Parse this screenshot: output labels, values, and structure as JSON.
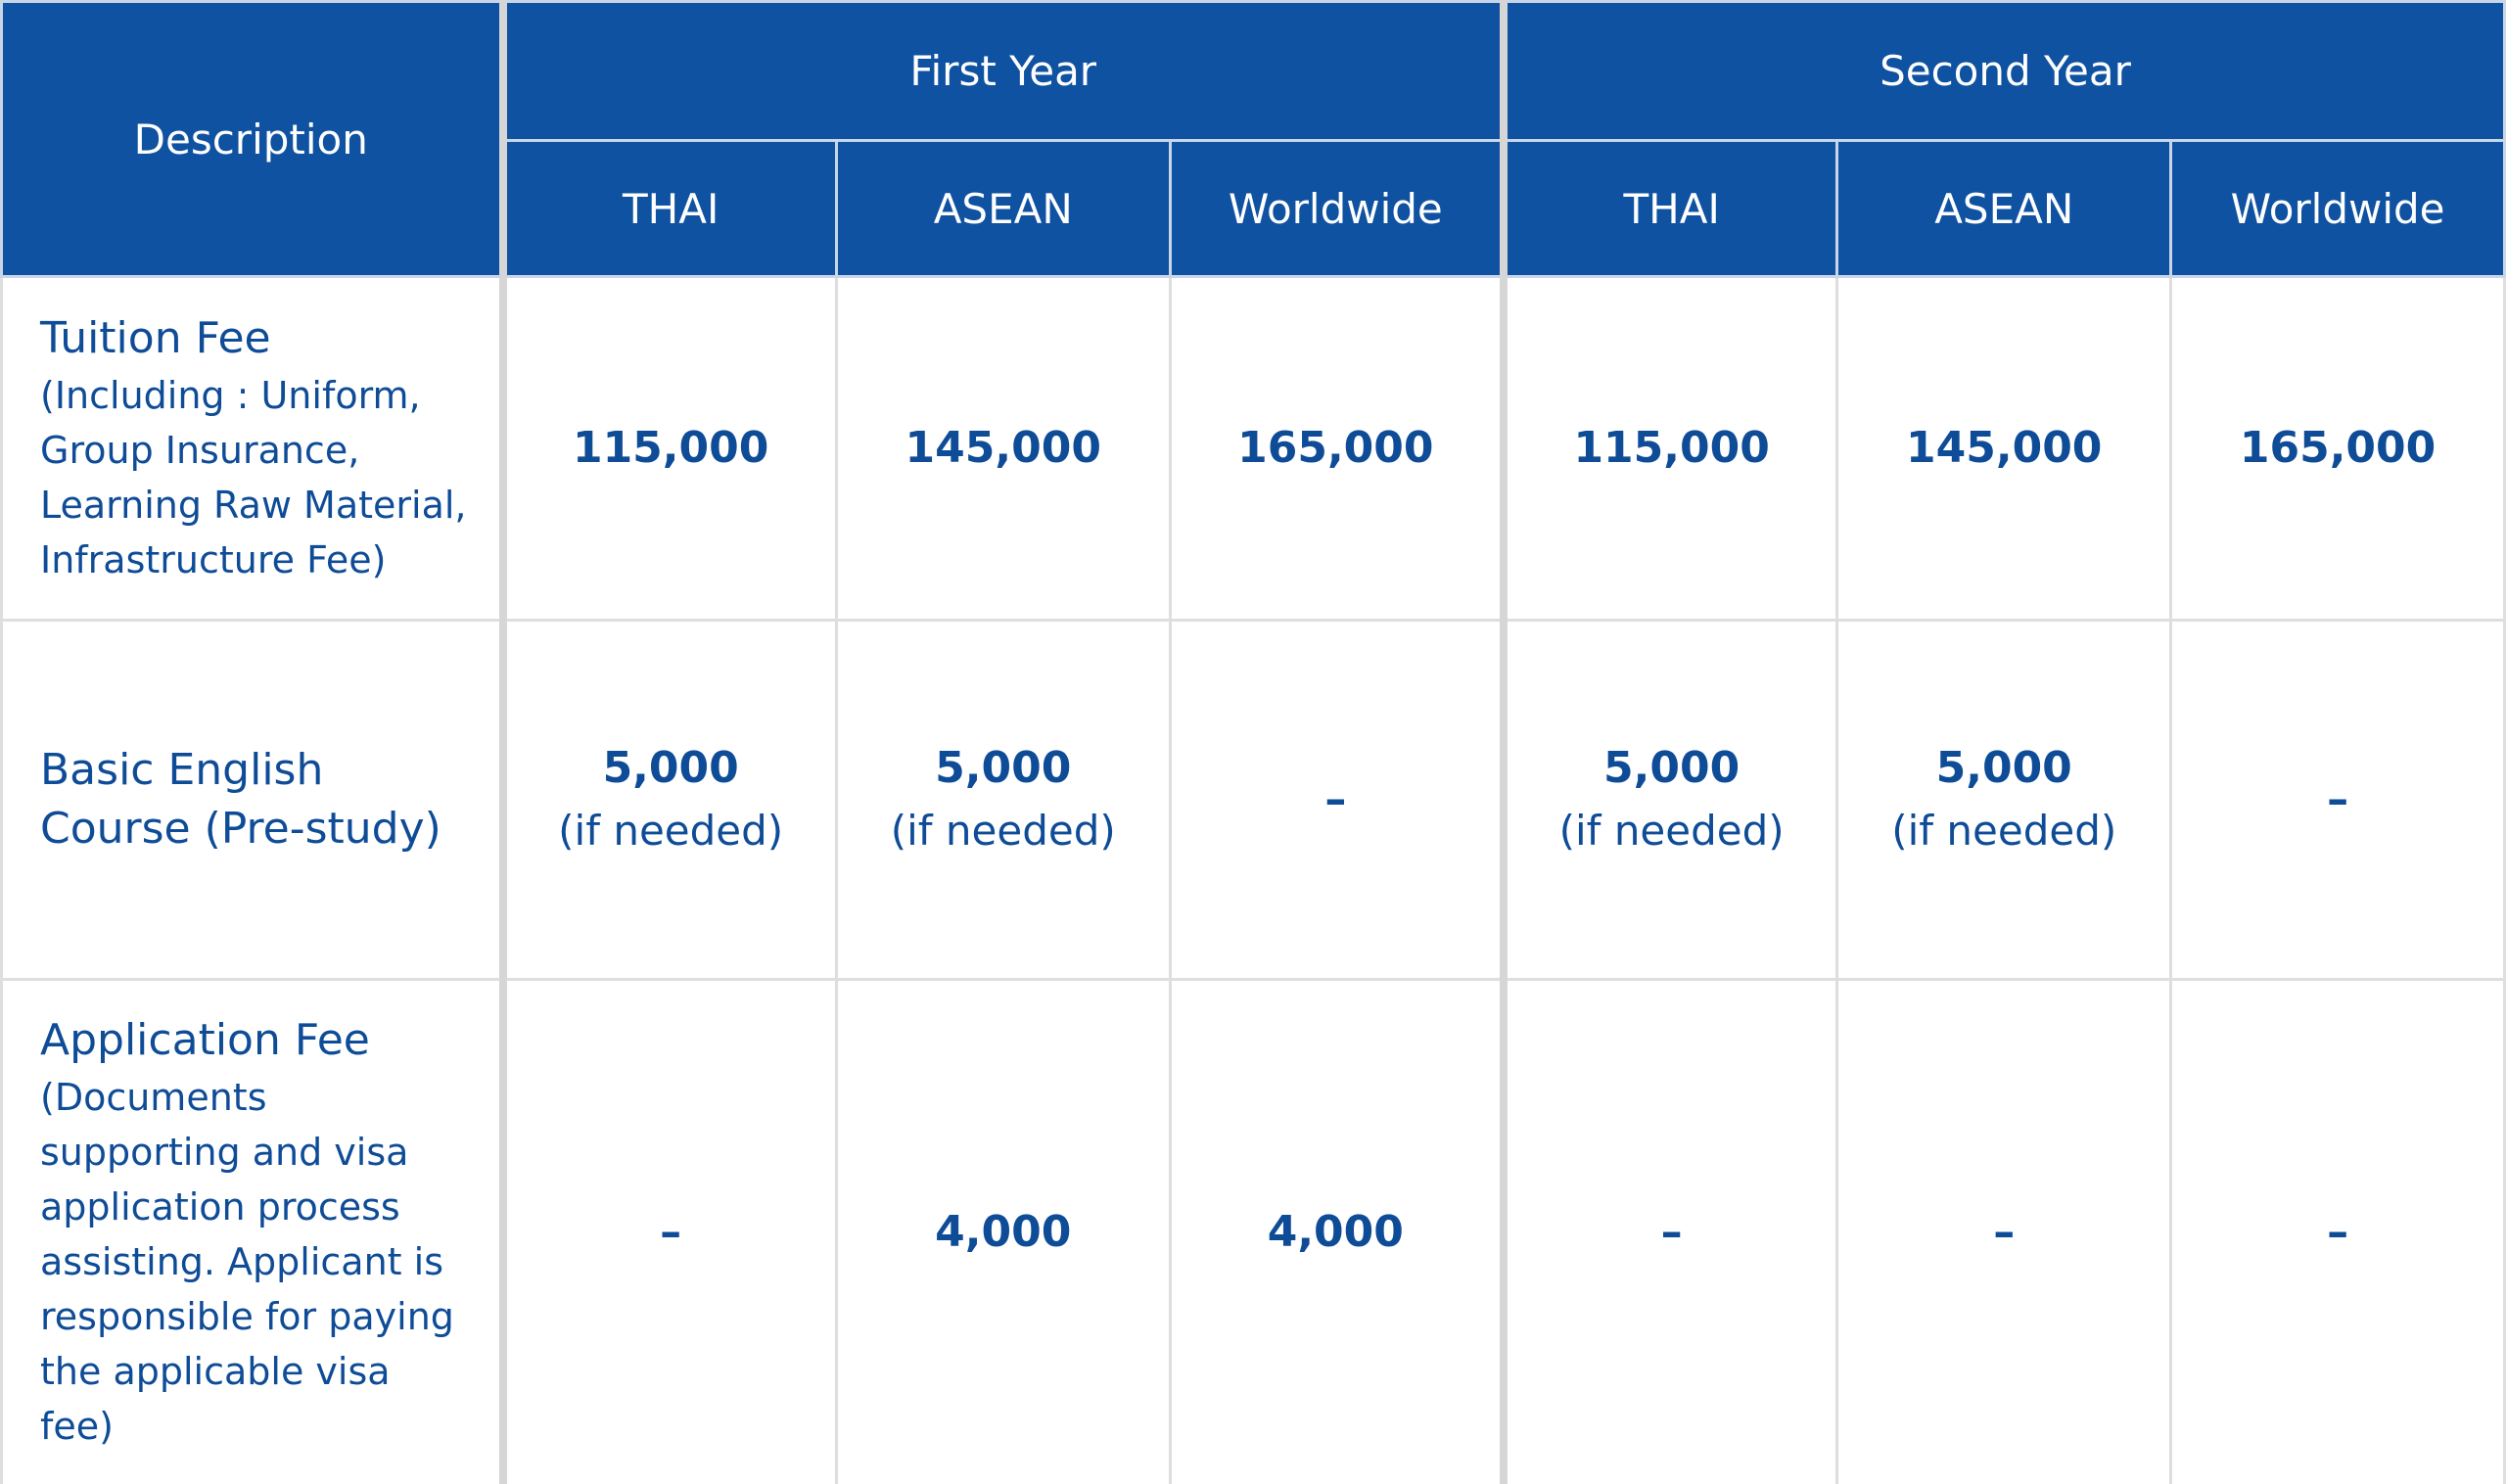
{
  "table": {
    "header": {
      "description": "Description",
      "years": [
        {
          "label": "First Year",
          "regions": [
            "THAI",
            "ASEAN",
            "Worldwide"
          ]
        },
        {
          "label": "Second Year",
          "regions": [
            "THAI",
            "ASEAN",
            "Worldwide"
          ]
        }
      ]
    },
    "rows": [
      {
        "title": "Tuition Fee",
        "note": "(Including : Uniform, Group Insurance, Learning Raw Material, Infrastructure Fee)",
        "cells": [
          {
            "value": "115,000"
          },
          {
            "value": "145,000"
          },
          {
            "value": "165,000"
          },
          {
            "value": "115,000"
          },
          {
            "value": "145,000"
          },
          {
            "value": "165,000"
          }
        ]
      },
      {
        "title": "Basic English Course (Pre-study)",
        "cells": [
          {
            "value": "5,000",
            "note": "(if needed)"
          },
          {
            "value": "5,000",
            "note": "(if needed)"
          },
          {
            "value": "–"
          },
          {
            "value": "5,000",
            "note": "(if needed)"
          },
          {
            "value": "5,000",
            "note": "(if needed)"
          },
          {
            "value": "–"
          }
        ]
      },
      {
        "title": "Application Fee",
        "note": "(Documents supporting and visa application process assisting. Applicant is responsible for paying the applicable visa fee)",
        "cells": [
          {
            "value": "–"
          },
          {
            "value": "4,000"
          },
          {
            "value": "4,000"
          },
          {
            "value": "–"
          },
          {
            "value": "–"
          },
          {
            "value": "–"
          }
        ]
      }
    ]
  }
}
